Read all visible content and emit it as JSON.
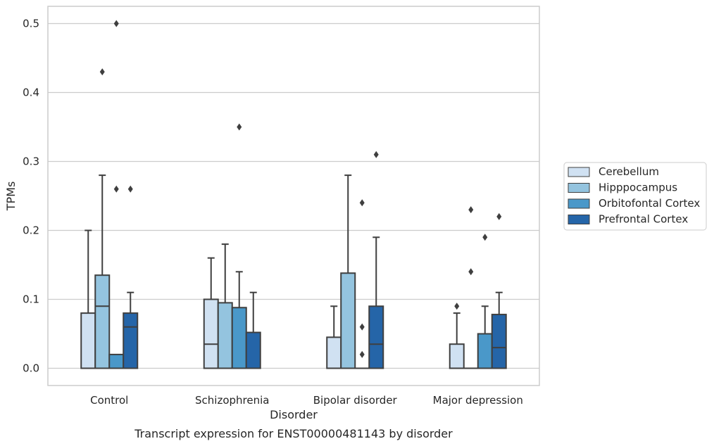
{
  "chart_data": {
    "type": "box",
    "title": "",
    "caption": "Transcript expression for ENST00000481143 by disorder",
    "xlabel": "Disorder",
    "ylabel": "TPMs",
    "ylim": [
      -0.025,
      0.525
    ],
    "yticks": [
      "0.0",
      "0.1",
      "0.2",
      "0.3",
      "0.4",
      "0.5"
    ],
    "grid": "horizontal",
    "legend_position": "right",
    "categories": [
      "Control",
      "Schizophrenia",
      "Bipolar disorder",
      "Major depression"
    ],
    "series": [
      {
        "name": "Cerebellum",
        "color": "#d0e1f2",
        "boxes": [
          {
            "whislo": 0.0,
            "q1": 0.0,
            "med": 0.0,
            "q3": 0.08,
            "whishi": 0.2,
            "fliers": []
          },
          {
            "whislo": 0.0,
            "q1": 0.0,
            "med": 0.035,
            "q3": 0.1,
            "whishi": 0.16,
            "fliers": []
          },
          {
            "whislo": 0.0,
            "q1": 0.0,
            "med": 0.0,
            "q3": 0.045,
            "whishi": 0.09,
            "fliers": []
          },
          {
            "whislo": 0.0,
            "q1": 0.0,
            "med": 0.0,
            "q3": 0.035,
            "whishi": 0.08,
            "fliers": [
              0.09
            ]
          }
        ]
      },
      {
        "name": "Hipppocampus",
        "color": "#94c4df",
        "boxes": [
          {
            "whislo": 0.0,
            "q1": 0.0,
            "med": 0.09,
            "q3": 0.135,
            "whishi": 0.28,
            "fliers": [
              0.43
            ]
          },
          {
            "whislo": 0.0,
            "q1": 0.0,
            "med": 0.0,
            "q3": 0.095,
            "whishi": 0.18,
            "fliers": []
          },
          {
            "whislo": 0.0,
            "q1": 0.0,
            "med": 0.0,
            "q3": 0.138,
            "whishi": 0.28,
            "fliers": []
          },
          {
            "whislo": 0.0,
            "q1": 0.0,
            "med": 0.0,
            "q3": 0.0,
            "whishi": 0.0,
            "fliers": [
              0.14,
              0.23
            ]
          }
        ]
      },
      {
        "name": "Orbitofontal Cortex",
        "color": "#4a98c9",
        "boxes": [
          {
            "whislo": 0.0,
            "q1": 0.0,
            "med": 0.0,
            "q3": 0.02,
            "whishi": 0.02,
            "fliers": [
              0.26,
              0.5
            ]
          },
          {
            "whislo": 0.0,
            "q1": 0.0,
            "med": 0.0,
            "q3": 0.088,
            "whishi": 0.14,
            "fliers": [
              0.35
            ]
          },
          {
            "whislo": 0.0,
            "q1": 0.0,
            "med": 0.0,
            "q3": 0.0,
            "whishi": 0.0,
            "fliers": [
              0.02,
              0.06,
              0.24
            ]
          },
          {
            "whislo": 0.0,
            "q1": 0.0,
            "med": 0.0,
            "q3": 0.05,
            "whishi": 0.09,
            "fliers": [
              0.19
            ]
          }
        ]
      },
      {
        "name": "Prefrontal Cortex",
        "color": "#2565a8",
        "boxes": [
          {
            "whislo": 0.0,
            "q1": 0.0,
            "med": 0.06,
            "q3": 0.08,
            "whishi": 0.11,
            "fliers": [
              0.26
            ]
          },
          {
            "whislo": 0.0,
            "q1": 0.0,
            "med": 0.0,
            "q3": 0.052,
            "whishi": 0.11,
            "fliers": []
          },
          {
            "whislo": 0.0,
            "q1": 0.0,
            "med": 0.035,
            "q3": 0.09,
            "whishi": 0.19,
            "fliers": [
              0.31
            ]
          },
          {
            "whislo": 0.0,
            "q1": 0.0,
            "med": 0.03,
            "q3": 0.078,
            "whishi": 0.11,
            "fliers": [
              0.22
            ]
          }
        ]
      }
    ]
  }
}
